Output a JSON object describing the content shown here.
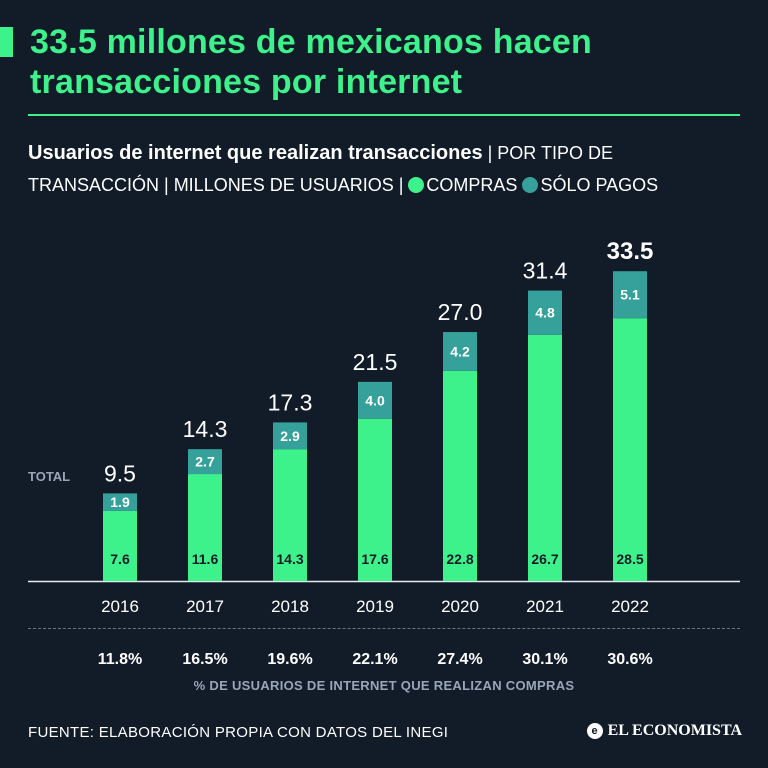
{
  "headline": "33.5 millones de mexicanos hacen transacciones por internet",
  "subtitle": {
    "strong": "Usuarios de internet que realizan transacciones",
    "rest": " | POR TIPO DE TRANSACCIÓN | MILLONES DE USUARIOS | ",
    "legend_purchases": "COMPRAS",
    "legend_payments": "SÓLO PAGOS"
  },
  "colors": {
    "background": "#121c29",
    "accent": "#3df28a",
    "payments": "#36a19a",
    "muted": "#9aa6b6"
  },
  "chart_data": {
    "type": "bar",
    "stacked": true,
    "title": "Usuarios de internet que realizan transacciones",
    "ylabel": "Millones de usuarios",
    "total_label": "TOTAL",
    "categories": [
      "2016",
      "2017",
      "2018",
      "2019",
      "2020",
      "2021",
      "2022"
    ],
    "series": [
      {
        "name": "COMPRAS",
        "values": [
          7.6,
          11.6,
          14.3,
          17.6,
          22.8,
          26.7,
          28.5
        ]
      },
      {
        "name": "SÓLO PAGOS",
        "values": [
          1.9,
          2.7,
          2.9,
          4.0,
          4.2,
          4.8,
          5.1
        ]
      }
    ],
    "totals": [
      "9.5",
      "14.3",
      "17.3",
      "21.5",
      "27.0",
      "31.4",
      "33.5"
    ],
    "purchase_labels": [
      "7.6",
      "11.6",
      "14.3",
      "17.6",
      "22.8",
      "26.7",
      "28.5"
    ],
    "payment_labels": [
      "1.9",
      "2.7",
      "2.9",
      "4.0",
      "4.2",
      "4.8",
      "5.1"
    ],
    "pct_buyers": [
      "11.8%",
      "16.5%",
      "19.6%",
      "22.1%",
      "27.4%",
      "30.1%",
      "30.6%"
    ],
    "pct_label": "% DE USUARIOS DE INTERNET QUE REALIZAN COMPRAS",
    "ylim": [
      0,
      35
    ]
  },
  "footer": {
    "source": "FUENTE: ELABORACIÓN PROPIA  CON DATOS DEL INEGI",
    "brand": "EL ECONOMISTA",
    "brand_icon": "e"
  }
}
